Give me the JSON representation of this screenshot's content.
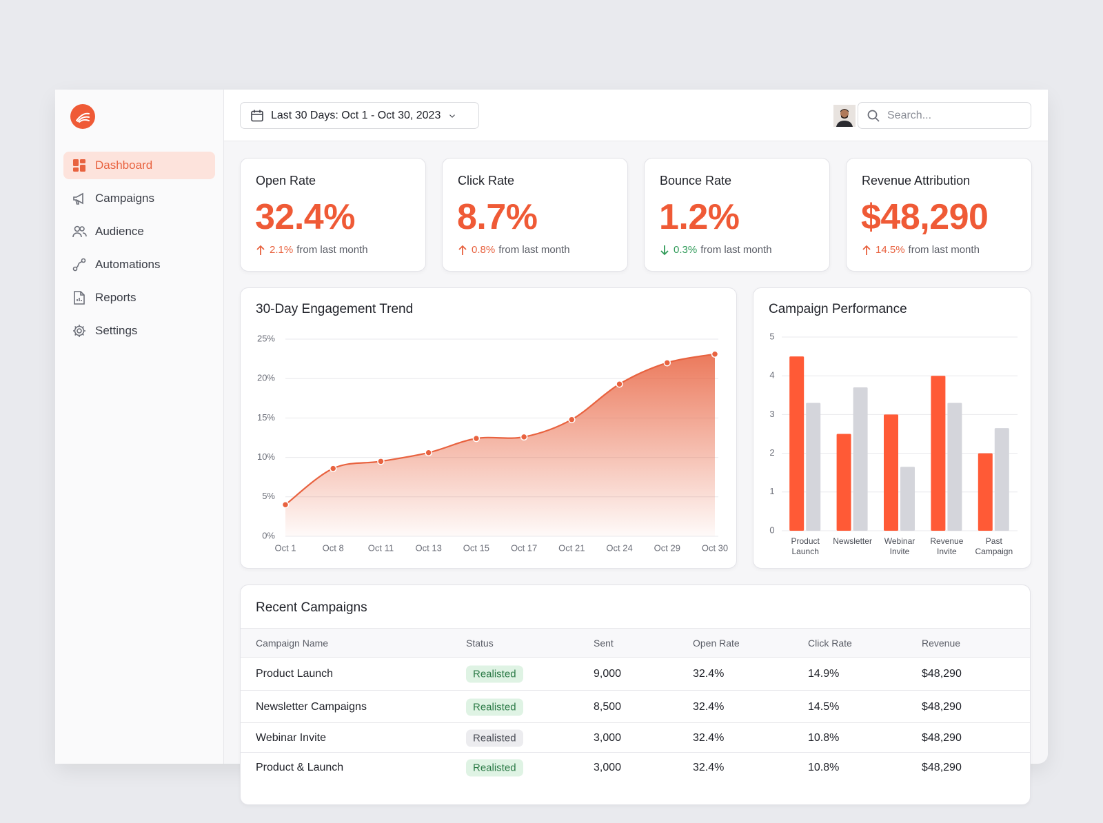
{
  "sidebar": {
    "nav": [
      "Dashboard",
      "Campaigns",
      "Audience",
      "Automations",
      "Reports",
      "Settings"
    ]
  },
  "header": {
    "date_range": "Last 30 Days: Oct 1 - Oct 30, 2023",
    "search_placeholder": "Search..."
  },
  "kpis": [
    {
      "label": "Open Rate",
      "value": "32.4%",
      "change": "2.1%",
      "direction": "up",
      "note": "from last month"
    },
    {
      "label": "Click Rate",
      "value": "8.7%",
      "change": "0.8%",
      "direction": "up",
      "note": "from last month"
    },
    {
      "label": "Bounce Rate",
      "value": "1.2%",
      "change": "0.3%",
      "direction": "down",
      "note": "from last month"
    },
    {
      "label": "Revenue Attribution",
      "value": "$48,290",
      "change": "14.5%",
      "direction": "up",
      "note": "from last month"
    }
  ],
  "chart_data": [
    {
      "type": "line",
      "title": "30-Day Engagement Trend",
      "categories": [
        "Oct 1",
        "Oct 8",
        "Oct 11",
        "Oct 13",
        "Oct 15",
        "Oct 17",
        "Oct 21",
        "Oct 24",
        "Oct 29",
        "Oct 30"
      ],
      "values": [
        4,
        8.6,
        9.5,
        10.6,
        12.4,
        12.6,
        14.8,
        19.3,
        22,
        23.1
      ],
      "color": "#e8623f",
      "ylim": [
        0,
        25
      ],
      "yticks": [
        {
          "value": 0,
          "label": "0%"
        },
        {
          "value": 5,
          "label": "5%"
        },
        {
          "value": 10,
          "label": "10%"
        },
        {
          "value": 15,
          "label": "15%"
        },
        {
          "value": 20,
          "label": "20%"
        },
        {
          "value": 25,
          "label": "25%"
        }
      ],
      "grid": true
    },
    {
      "type": "bar",
      "title": "Campaign Performance",
      "categories": [
        "Product Launch",
        "Newsletter",
        "Webinar Invite",
        "Revenue Invite",
        "Past Campaign"
      ],
      "series": [
        {
          "color": "#ff5a36",
          "values": [
            4.5,
            2.5,
            3,
            4,
            2
          ]
        },
        {
          "color": "#d4d5db",
          "values": [
            3.3,
            3.7,
            1.65,
            3.3,
            2.65
          ]
        }
      ],
      "ylim": [
        0,
        5
      ],
      "yticks": [
        0,
        1,
        2,
        3,
        4,
        5
      ],
      "grid": true
    }
  ],
  "table": {
    "title": "Recent Campaigns",
    "columns": [
      "Campaign Name",
      "Status",
      "Sent",
      "Open Rate",
      "Click Rate",
      "Revenue"
    ],
    "rows": [
      [
        "Product Launch",
        "Realisted",
        "9,000",
        "32.4%",
        "14.9%",
        "$48,290"
      ],
      [
        "Newsletter Campaigns",
        "Realisted",
        "8,500",
        "32.4%",
        "14.5%",
        "$48,290"
      ],
      [
        "Webinar Invite",
        "Realisted",
        "3,000",
        "32.4%",
        "10.8%",
        "$48,290"
      ],
      [
        "Product & Launch",
        "Realisted",
        "3,000",
        "32.4%",
        "10.8%",
        "$48,290"
      ]
    ],
    "status_tones": [
      "green",
      "green",
      "gray",
      "green"
    ]
  }
}
